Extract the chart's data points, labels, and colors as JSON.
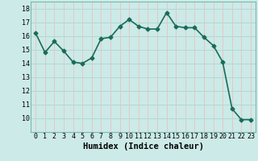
{
  "x": [
    0,
    1,
    2,
    3,
    4,
    5,
    6,
    7,
    8,
    9,
    10,
    11,
    12,
    13,
    14,
    15,
    16,
    17,
    18,
    19,
    20,
    21,
    22,
    23
  ],
  "y": [
    16.2,
    14.8,
    15.6,
    14.9,
    14.1,
    14.0,
    14.4,
    15.8,
    15.9,
    16.7,
    17.2,
    16.7,
    16.5,
    16.5,
    17.7,
    16.7,
    16.6,
    16.6,
    15.9,
    15.3,
    14.1,
    10.7,
    9.9,
    9.9
  ],
  "line_color": "#1a6b5a",
  "marker": "D",
  "marker_size": 2.5,
  "bg_color": "#cceae7",
  "grid_color_h": "#b0d8d4",
  "grid_color_v": "#f0b8b8",
  "xlabel": "Humidex (Indice chaleur)",
  "ylim": [
    9.0,
    18.5
  ],
  "xlim": [
    -0.5,
    23.5
  ],
  "yticks": [
    10,
    11,
    12,
    13,
    14,
    15,
    16,
    17,
    18
  ],
  "xticks": [
    0,
    1,
    2,
    3,
    4,
    5,
    6,
    7,
    8,
    9,
    10,
    11,
    12,
    13,
    14,
    15,
    16,
    17,
    18,
    19,
    20,
    21,
    22,
    23
  ],
  "tick_fontsize": 6,
  "xlabel_fontsize": 7.5,
  "line_width": 1.2,
  "spine_color": "#7ab8b0"
}
